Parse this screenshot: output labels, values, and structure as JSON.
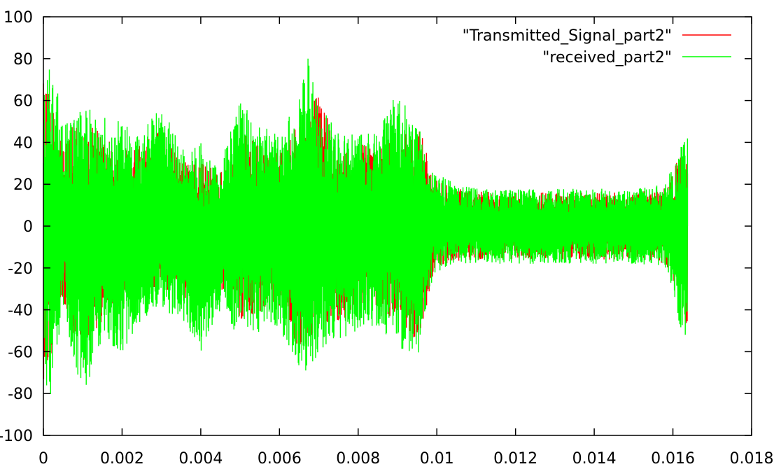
{
  "chart_data": {
    "type": "line",
    "title": "",
    "xlabel": "",
    "ylabel": "",
    "xlim": [
      0,
      0.018
    ],
    "ylim": [
      -100,
      100
    ],
    "x_ticks": [
      0,
      0.002,
      0.004,
      0.006,
      0.008,
      0.01,
      0.012,
      0.014,
      0.016,
      0.018
    ],
    "x_tick_labels": [
      "0",
      "0.002",
      "0.004",
      "0.006",
      "0.008",
      "0.01",
      "0.012",
      "0.014",
      "0.016",
      "0.018"
    ],
    "y_ticks": [
      100,
      80,
      60,
      40,
      20,
      0,
      -20,
      -40,
      -60,
      -80,
      -100
    ],
    "y_tick_labels": [
      "100",
      "80",
      "60",
      "40",
      "20",
      "0",
      "-20",
      "-40",
      "-60",
      "-80",
      "-100"
    ],
    "grid": false,
    "legend_position": "top-right",
    "signal_end_x": 0.01637,
    "series": [
      {
        "name": "\"Transmitted_Signal_part2\"",
        "color": "#ff0000",
        "envelope": {
          "x": [
            0,
            0.0005,
            0.001,
            0.0015,
            0.002,
            0.0025,
            0.003,
            0.0035,
            0.004,
            0.0045,
            0.005,
            0.0055,
            0.006,
            0.0065,
            0.007,
            0.0075,
            0.008,
            0.0085,
            0.009,
            0.0095,
            0.01,
            0.0105,
            0.011,
            0.012,
            0.013,
            0.014,
            0.015,
            0.0158,
            0.0162,
            0.01637
          ],
          "upper": [
            70,
            45,
            50,
            45,
            40,
            38,
            48,
            30,
            35,
            25,
            45,
            40,
            35,
            50,
            65,
            35,
            40,
            40,
            40,
            50,
            22,
            18,
            17,
            16,
            16,
            16,
            16,
            18,
            35,
            40
          ],
          "lower": [
            -75,
            -40,
            -65,
            -45,
            -40,
            -35,
            -30,
            -35,
            -40,
            -30,
            -45,
            -42,
            -38,
            -60,
            -50,
            -45,
            -42,
            -40,
            -45,
            -55,
            -20,
            -17,
            -16,
            -16,
            -16,
            -16,
            -16,
            -18,
            -35,
            -50
          ]
        }
      },
      {
        "name": "\"received_part2\"",
        "color": "#00ff00",
        "envelope": {
          "x": [
            0,
            0.0002,
            0.0005,
            0.001,
            0.0015,
            0.002,
            0.0025,
            0.003,
            0.0035,
            0.004,
            0.0045,
            0.005,
            0.0055,
            0.006,
            0.0065,
            0.0067,
            0.007,
            0.0075,
            0.008,
            0.0085,
            0.009,
            0.0095,
            0.0098,
            0.01,
            0.0105,
            0.011,
            0.012,
            0.013,
            0.014,
            0.015,
            0.0158,
            0.0162,
            0.01637
          ],
          "upper": [
            65,
            80,
            50,
            58,
            55,
            50,
            45,
            58,
            38,
            40,
            30,
            62,
            48,
            45,
            60,
            84,
            60,
            45,
            45,
            45,
            65,
            50,
            30,
            25,
            20,
            18,
            18,
            18,
            18,
            18,
            20,
            38,
            46
          ],
          "lower": [
            -70,
            -85,
            -45,
            -82,
            -55,
            -60,
            -45,
            -40,
            -45,
            -60,
            -40,
            -58,
            -52,
            -48,
            -72,
            -77,
            -60,
            -55,
            -50,
            -48,
            -58,
            -65,
            -30,
            -22,
            -18,
            -18,
            -18,
            -18,
            -18,
            -18,
            -20,
            -50,
            -58
          ]
        }
      }
    ]
  }
}
